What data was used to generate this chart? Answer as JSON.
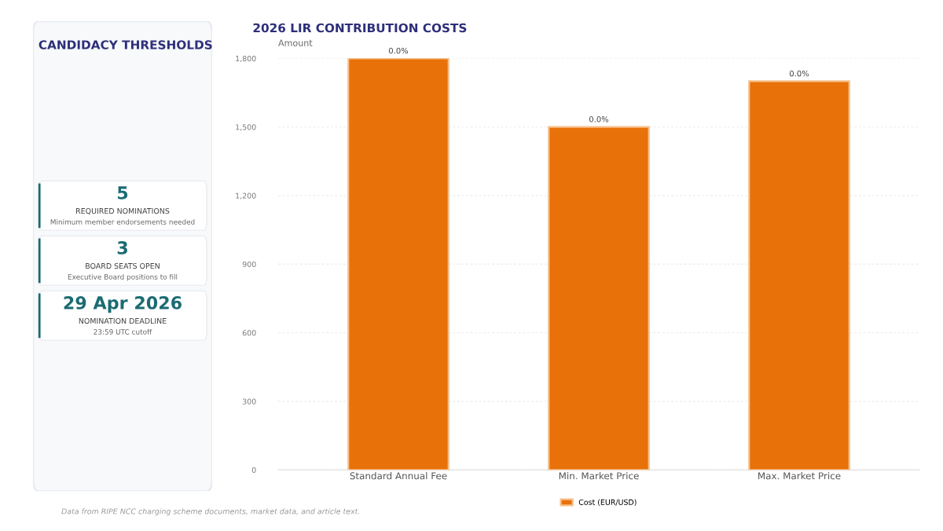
{
  "chart_data": [
    {
      "type": "other",
      "title": "CANDIDACY THRESHOLDS",
      "annotations": [
        "5",
        "REQUIRED NOMINATIONS",
        "Minimum member endorsements needed",
        "3",
        "BOARD SEATS OPEN",
        "Executive Board positions to fill",
        "29 Apr 2026",
        "NOMINATION DEADLINE",
        "23:59 UTC cutoff"
      ],
      "color": "#1b6b73"
    },
    {
      "type": "bar",
      "title": "2026 LIR CONTRIBUTION COSTS",
      "ylabel": "Amount",
      "categories": [
        "Standard Annual Fee",
        "Min. Market Price",
        "Max. Market Price"
      ],
      "series": [
        {
          "name": "Cost (EUR/USD)",
          "color": "#e8710a",
          "values": [
            1800,
            1500,
            1700
          ]
        }
      ],
      "ylim": [
        0,
        1800
      ],
      "yticks": [
        0,
        300,
        600,
        900,
        {
          "value": 1200,
          "label": "1,200"
        },
        {
          "value": 1500,
          "label": "1,500"
        },
        {
          "value": 1800,
          "label": "1,800"
        }
      ],
      "grid": "y",
      "legend": "bottom",
      "annotations": [
        {
          "text": "0.0%",
          "x": "Standard Annual Fee"
        },
        {
          "text": "0.0%",
          "x": "Min. Market Price"
        },
        {
          "text": "0.0%",
          "x": "Max. Market Price"
        },
        "Data from RIPE NCC charging scheme documents, market data, and article text."
      ]
    }
  ]
}
